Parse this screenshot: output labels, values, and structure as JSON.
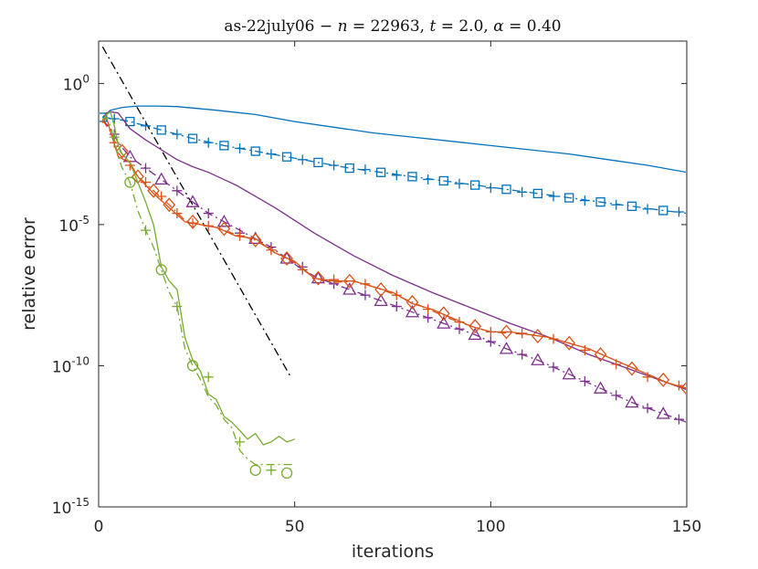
{
  "chart_data": {
    "type": "line",
    "title": "as-22july06 − n = 22963, t = 2.0, α = 0.40",
    "title_parts": {
      "prefix": "as-22july06 − ",
      "n_symbol": "n",
      "n_value": " = 22963, ",
      "t_symbol": "t",
      "t_value": " = 2.0, ",
      "alpha_symbol": "α",
      "alpha_value": " = 0.40"
    },
    "xlabel": "iterations",
    "ylabel": "relative error",
    "xlim": [
      0,
      150
    ],
    "ylim_log10": [
      -15,
      1.5
    ],
    "yscale": "log",
    "x_ticks": [
      {
        "value": 0,
        "label": "0"
      },
      {
        "value": 50,
        "label": "50"
      },
      {
        "value": 100,
        "label": "100"
      },
      {
        "value": 150,
        "label": "150"
      }
    ],
    "y_ticks": [
      {
        "log10": 0,
        "base": "10",
        "exp": "0"
      },
      {
        "log10": -5,
        "base": "10",
        "exp": "-5"
      },
      {
        "log10": -10,
        "base": "10",
        "exp": "-10"
      },
      {
        "log10": -15,
        "base": "10",
        "exp": "-15"
      }
    ],
    "grid": false,
    "colors": {
      "blue": "#0072BD",
      "orange": "#D95319",
      "purple": "#7E2F8E",
      "green": "#77AC30",
      "black": "#000000"
    },
    "series": [
      {
        "name": "reference slope",
        "color": "black",
        "style": "dashdot",
        "marker": "none",
        "x": [
          1,
          49
        ],
        "y_log10": [
          1.3,
          -10.4
        ]
      },
      {
        "name": "blue solid",
        "color": "blue",
        "style": "solid",
        "marker": "none",
        "x": [
          1,
          3,
          6,
          10,
          15,
          20,
          30,
          40,
          50,
          60,
          70,
          80,
          90,
          100,
          110,
          120,
          130,
          140,
          150
        ],
        "y_log10": [
          -1.2,
          -0.95,
          -0.85,
          -0.8,
          -0.8,
          -0.82,
          -0.95,
          -1.1,
          -1.35,
          -1.55,
          -1.75,
          -1.9,
          -2.05,
          -2.2,
          -2.35,
          -2.5,
          -2.7,
          -2.9,
          -3.15
        ]
      },
      {
        "name": "blue dash-dot (square)",
        "color": "blue",
        "style": "dashdot",
        "marker": "square",
        "x": [
          1,
          4,
          8,
          12,
          16,
          20,
          24,
          32,
          40,
          48,
          56,
          64,
          72,
          80,
          88,
          96,
          104,
          112,
          120,
          128,
          136,
          144,
          150
        ],
        "y_log10": [
          -1.2,
          -1.25,
          -1.35,
          -1.5,
          -1.65,
          -1.8,
          -1.95,
          -2.2,
          -2.4,
          -2.6,
          -2.8,
          -3.0,
          -3.15,
          -3.3,
          -3.45,
          -3.6,
          -3.75,
          -3.9,
          -4.05,
          -4.2,
          -4.35,
          -4.5,
          -4.6
        ],
        "markers": {
          "x": [
            1,
            8,
            16,
            24,
            32,
            40,
            48,
            56,
            64,
            72,
            80,
            88,
            96,
            104,
            112,
            120,
            128,
            136,
            144
          ],
          "y_log10": [
            -1.2,
            -1.35,
            -1.65,
            -1.95,
            -2.2,
            -2.4,
            -2.6,
            -2.8,
            -3.0,
            -3.15,
            -3.3,
            -3.45,
            -3.6,
            -3.75,
            -3.9,
            -4.05,
            -4.2,
            -4.35,
            -4.5
          ]
        }
      },
      {
        "name": "blue plus markers",
        "color": "blue",
        "style": "none",
        "marker": "plus",
        "x": [
          4,
          12,
          20,
          28,
          36,
          44,
          52,
          60,
          68,
          76,
          84,
          92,
          100,
          108,
          116,
          124,
          132,
          140,
          148
        ],
        "y_log10": [
          -1.25,
          -1.5,
          -1.8,
          -2.1,
          -2.3,
          -2.5,
          -2.7,
          -2.9,
          -3.05,
          -3.25,
          -3.4,
          -3.55,
          -3.7,
          -3.85,
          -4.0,
          -4.15,
          -4.3,
          -4.45,
          -4.55
        ]
      },
      {
        "name": "purple solid",
        "color": "purple",
        "style": "solid",
        "marker": "none",
        "x": [
          1,
          2,
          3,
          5,
          8,
          12,
          16,
          20,
          24,
          28,
          35,
          45,
          55,
          65,
          75,
          85,
          95,
          105,
          115,
          125,
          135,
          145,
          150
        ],
        "y_log10": [
          -1.3,
          -1.05,
          -1.0,
          -1.05,
          -1.6,
          -2.0,
          -2.35,
          -2.7,
          -2.95,
          -3.15,
          -3.6,
          -4.4,
          -5.3,
          -6.1,
          -6.8,
          -7.4,
          -7.95,
          -8.5,
          -9.0,
          -9.6,
          -10.1,
          -10.6,
          -10.85
        ]
      },
      {
        "name": "purple dash-dot (triangle)",
        "color": "purple",
        "style": "dashdot",
        "marker": "triangle",
        "x": [
          1,
          3,
          5,
          8,
          12,
          16,
          20,
          24,
          28,
          32,
          36,
          40,
          44,
          48,
          52,
          56,
          64,
          72,
          80,
          88,
          96,
          104,
          112,
          120,
          128,
          136,
          144,
          150
        ],
        "y_log10": [
          -1.3,
          -1.6,
          -2.1,
          -2.6,
          -3.0,
          -3.4,
          -3.8,
          -4.2,
          -4.6,
          -4.9,
          -5.2,
          -5.5,
          -5.8,
          -6.2,
          -6.6,
          -6.9,
          -7.3,
          -7.7,
          -8.1,
          -8.5,
          -8.9,
          -9.4,
          -9.8,
          -10.3,
          -10.8,
          -11.3,
          -11.7,
          -12.0
        ],
        "markers": {
          "x": [
            8,
            16,
            24,
            32,
            40,
            48,
            56,
            64,
            72,
            80,
            88,
            96,
            104,
            112,
            120,
            128,
            136,
            144
          ],
          "y_log10": [
            -2.6,
            -3.4,
            -4.2,
            -4.9,
            -5.5,
            -6.2,
            -6.9,
            -7.3,
            -7.7,
            -8.1,
            -8.5,
            -8.9,
            -9.4,
            -9.8,
            -10.3,
            -10.8,
            -11.3,
            -11.7
          ]
        }
      },
      {
        "name": "purple plus markers",
        "color": "purple",
        "style": "none",
        "marker": "plus",
        "x": [
          4,
          12,
          20,
          28,
          36,
          44,
          52,
          60,
          68,
          76,
          84,
          92,
          100,
          108,
          116,
          124,
          132,
          140,
          148
        ],
        "y_log10": [
          -1.8,
          -3.0,
          -3.8,
          -4.6,
          -5.3,
          -5.8,
          -6.5,
          -7.1,
          -7.5,
          -7.9,
          -8.3,
          -8.7,
          -9.15,
          -9.6,
          -10.05,
          -10.55,
          -11.05,
          -11.5,
          -11.9
        ]
      },
      {
        "name": "orange solid",
        "color": "orange",
        "style": "solid",
        "marker": "none",
        "x": [
          1,
          2,
          3,
          5,
          8,
          10,
          14,
          18,
          22,
          26,
          30,
          35,
          40,
          45,
          50,
          55,
          60,
          65,
          70,
          75,
          80,
          85,
          90,
          95,
          100,
          105,
          110,
          115,
          120,
          125,
          130,
          135,
          140,
          145,
          150
        ],
        "y_log10": [
          -1.4,
          -1.2,
          -1.7,
          -2.6,
          -2.8,
          -3.3,
          -3.9,
          -4.4,
          -4.9,
          -5.0,
          -5.1,
          -5.4,
          -5.5,
          -6.0,
          -6.3,
          -6.9,
          -7.0,
          -7.0,
          -7.2,
          -7.4,
          -7.8,
          -8.0,
          -8.3,
          -8.6,
          -8.8,
          -8.8,
          -8.9,
          -9.0,
          -9.2,
          -9.4,
          -9.7,
          -10.0,
          -10.3,
          -10.6,
          -10.8
        ]
      },
      {
        "name": "orange dash-dot (diamond)",
        "color": "orange",
        "style": "dashdot",
        "marker": "diamond",
        "x": [
          1,
          3,
          5,
          8,
          10,
          14,
          18,
          22,
          26,
          30,
          35,
          40,
          45,
          50,
          55,
          60,
          65,
          70,
          75,
          80,
          85,
          90,
          95,
          100,
          105,
          110,
          115,
          120,
          125,
          130,
          135,
          140,
          145,
          150
        ],
        "y_log10": [
          -1.3,
          -1.7,
          -2.3,
          -2.9,
          -3.3,
          -3.8,
          -4.3,
          -4.85,
          -5.0,
          -5.1,
          -5.35,
          -5.55,
          -6.0,
          -6.35,
          -6.9,
          -7.05,
          -7.0,
          -7.2,
          -7.45,
          -7.75,
          -8.05,
          -8.35,
          -8.6,
          -8.8,
          -8.85,
          -8.9,
          -9.0,
          -9.2,
          -9.4,
          -9.7,
          -10.0,
          -10.3,
          -10.6,
          -10.8
        ],
        "markers": {
          "x": [
            6,
            10,
            14,
            18,
            24,
            32,
            40,
            48,
            56,
            64,
            72,
            80,
            88,
            96,
            104,
            112,
            120,
            128,
            136,
            144,
            150
          ],
          "y_log10": [
            -2.4,
            -3.3,
            -3.8,
            -4.3,
            -4.9,
            -5.15,
            -5.55,
            -6.2,
            -6.9,
            -7.0,
            -7.3,
            -7.75,
            -8.15,
            -8.6,
            -8.8,
            -8.95,
            -9.2,
            -9.6,
            -10.1,
            -10.5,
            -10.8
          ]
        }
      },
      {
        "name": "orange plus markers",
        "color": "orange",
        "style": "none",
        "marker": "plus",
        "x": [
          4,
          8,
          12,
          16,
          20,
          24,
          28,
          36,
          44,
          52,
          60,
          68,
          76,
          84,
          92,
          100,
          108,
          116,
          124,
          132,
          140,
          148
        ],
        "y_log10": [
          -2.1,
          -2.9,
          -3.5,
          -4.0,
          -4.6,
          -4.95,
          -5.05,
          -5.4,
          -5.9,
          -6.6,
          -6.95,
          -7.1,
          -7.5,
          -8.0,
          -8.45,
          -8.8,
          -8.85,
          -9.05,
          -9.45,
          -9.95,
          -10.4,
          -10.7
        ]
      },
      {
        "name": "green solid",
        "color": "green",
        "style": "solid",
        "marker": "none",
        "x": [
          1,
          2,
          3,
          4,
          5,
          6,
          8,
          10,
          12,
          14,
          16,
          18,
          20,
          22,
          24,
          26,
          28,
          30,
          32,
          34,
          36,
          38,
          40,
          42,
          44,
          46,
          48,
          50
        ],
        "y_log10": [
          -1.3,
          -1.1,
          -1.0,
          -1.5,
          -2.2,
          -2.5,
          -2.8,
          -3.5,
          -4.2,
          -5.0,
          -6.5,
          -7.0,
          -7.3,
          -9.0,
          -9.8,
          -10.2,
          -11.0,
          -11.2,
          -11.8,
          -12.0,
          -12.3,
          -12.6,
          -12.4,
          -12.8,
          -12.7,
          -12.5,
          -12.7,
          -12.6
        ]
      },
      {
        "name": "green dash-dot (circle)",
        "color": "green",
        "style": "dashdot",
        "marker": "circle",
        "x": [
          1,
          2,
          3,
          4,
          5,
          6,
          8,
          10,
          12,
          14,
          16,
          18,
          20,
          22,
          24,
          26,
          28,
          30,
          32,
          34,
          36,
          38,
          40,
          44,
          48,
          50
        ],
        "y_log10": [
          -1.3,
          -1.2,
          -1.5,
          -2.0,
          -2.6,
          -3.0,
          -3.5,
          -4.5,
          -5.2,
          -5.8,
          -6.6,
          -7.4,
          -7.9,
          -9.4,
          -10.0,
          -10.5,
          -11.1,
          -11.4,
          -11.9,
          -12.2,
          -13.0,
          -13.3,
          -13.5,
          -13.5,
          -13.5,
          -13.5
        ],
        "markers": {
          "x": [
            8,
            16,
            24,
            40,
            48
          ],
          "y_log10": [
            -3.5,
            -6.6,
            -10.0,
            -13.7,
            -13.8
          ]
        }
      },
      {
        "name": "green plus markers",
        "color": "green",
        "style": "none",
        "marker": "plus",
        "x": [
          4,
          12,
          20,
          28,
          36,
          44
        ],
        "y_log10": [
          -1.9,
          -5.2,
          -7.9,
          -10.4,
          -12.7,
          -13.7
        ]
      }
    ]
  }
}
